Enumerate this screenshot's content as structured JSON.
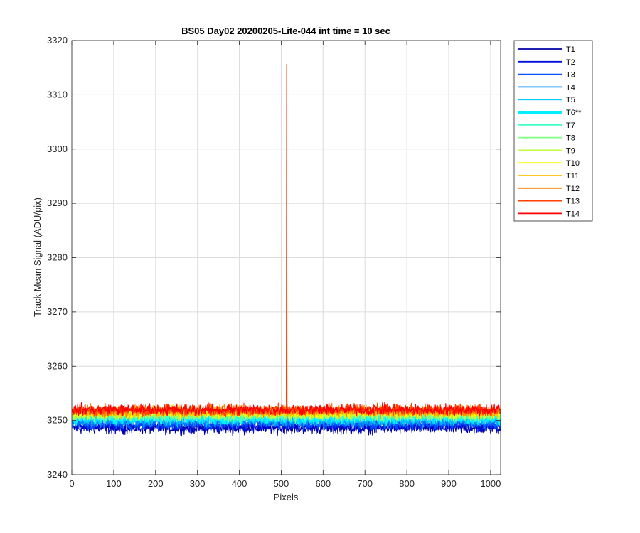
{
  "chart_data": {
    "type": "line",
    "title": "BS05 Day02 20200205-Lite-044 int time = 10 sec",
    "xlabel": "Pixels",
    "ylabel": "Track Mean Signal (ADU/pix)",
    "xlim": [
      0,
      1024
    ],
    "ylim": [
      3240,
      3320
    ],
    "xticks": [
      0,
      100,
      200,
      300,
      400,
      500,
      600,
      700,
      800,
      900,
      1000
    ],
    "yticks": [
      3240,
      3250,
      3260,
      3270,
      3280,
      3290,
      3300,
      3310,
      3320
    ],
    "grid": true,
    "legend_position": "outside-right-top",
    "x_range": [
      1,
      1024
    ],
    "series": [
      {
        "name": "T1",
        "color": "#0000a8",
        "baseline": 3248.6,
        "noise": 0.8,
        "highlight": false
      },
      {
        "name": "T2",
        "color": "#0010d8",
        "baseline": 3249.0,
        "noise": 0.8,
        "highlight": false
      },
      {
        "name": "T3",
        "color": "#0050ff",
        "baseline": 3249.4,
        "noise": 0.8,
        "highlight": false
      },
      {
        "name": "T4",
        "color": "#0090ff",
        "baseline": 3249.8,
        "noise": 0.8,
        "highlight": false
      },
      {
        "name": "T5",
        "color": "#00c8ff",
        "baseline": 3250.2,
        "noise": 0.8,
        "highlight": false
      },
      {
        "name": "T6**",
        "color": "#00f0ff",
        "baseline": 3250.5,
        "noise": 0.8,
        "highlight": true
      },
      {
        "name": "T7",
        "color": "#40ffc8",
        "baseline": 3250.8,
        "noise": 0.8,
        "highlight": false
      },
      {
        "name": "T8",
        "color": "#80ff80",
        "baseline": 3251.0,
        "noise": 0.8,
        "highlight": false
      },
      {
        "name": "T9",
        "color": "#c0ff40",
        "baseline": 3251.2,
        "noise": 0.8,
        "highlight": false
      },
      {
        "name": "T10",
        "color": "#ffff00",
        "baseline": 3251.4,
        "noise": 0.8,
        "highlight": false
      },
      {
        "name": "T11",
        "color": "#ffc000",
        "baseline": 3251.6,
        "noise": 0.8,
        "highlight": false
      },
      {
        "name": "T12",
        "color": "#ff8000",
        "baseline": 3251.8,
        "noise": 0.8,
        "highlight": false
      },
      {
        "name": "T13",
        "color": "#ff4000",
        "baseline": 3251.9,
        "noise": 0.8,
        "highlight": false
      },
      {
        "name": "T14",
        "color": "#ff0000",
        "baseline": 3252.0,
        "noise": 0.8,
        "highlight": false
      }
    ],
    "spike": {
      "series": "T13",
      "x": 513,
      "y": 3315.6
    }
  }
}
